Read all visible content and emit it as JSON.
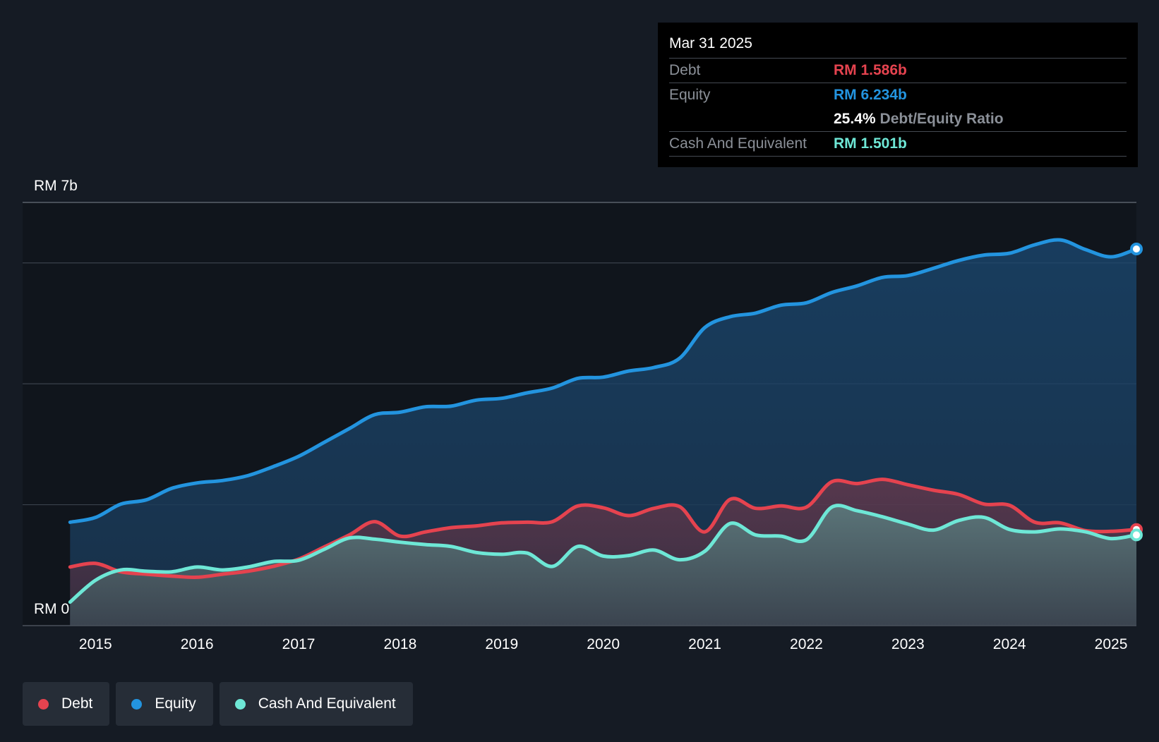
{
  "colors": {
    "background": "#151b24",
    "debt": "#e5434f",
    "equity": "#2394df",
    "cash": "#6ee7d6",
    "grid": "#3a414b"
  },
  "tooltip": {
    "date": "Mar 31 2025",
    "debt_label": "Debt",
    "debt_value": "RM 1.586b",
    "equity_label": "Equity",
    "equity_value": "RM 6.234b",
    "ratio_pct": "25.4%",
    "ratio_label": "Debt/Equity Ratio",
    "cash_label": "Cash And Equivalent",
    "cash_value": "RM 1.501b"
  },
  "legend": [
    {
      "name": "Debt",
      "color": "#e5434f"
    },
    {
      "name": "Equity",
      "color": "#2394df"
    },
    {
      "name": "Cash And Equivalent",
      "color": "#6ee7d6"
    }
  ],
  "chart_data": {
    "type": "area",
    "title": "",
    "xlabel": "",
    "ylabel": "",
    "y_unit": "RM billions",
    "ylim": [
      0,
      7
    ],
    "xlim": [
      2014.72,
      2025.25
    ],
    "y_tick_labels": {
      "top": "RM 7b",
      "bottom": "RM 0"
    },
    "gridlines_y": [
      2,
      4,
      6,
      7
    ],
    "x_ticks": [
      {
        "value": 2015,
        "label": "2015"
      },
      {
        "value": 2016,
        "label": "2016"
      },
      {
        "value": 2017,
        "label": "2017"
      },
      {
        "value": 2018,
        "label": "2018"
      },
      {
        "value": 2019,
        "label": "2019"
      },
      {
        "value": 2020,
        "label": "2020"
      },
      {
        "value": 2021,
        "label": "2021"
      },
      {
        "value": 2022,
        "label": "2022"
      },
      {
        "value": 2023,
        "label": "2023"
      },
      {
        "value": 2024,
        "label": "2024"
      },
      {
        "value": 2025,
        "label": "2025"
      }
    ],
    "x": [
      2014.75,
      2015.0,
      2015.25,
      2015.5,
      2015.75,
      2016.0,
      2016.25,
      2016.5,
      2016.75,
      2017.0,
      2017.25,
      2017.5,
      2017.75,
      2018.0,
      2018.25,
      2018.5,
      2018.75,
      2019.0,
      2019.25,
      2019.5,
      2019.75,
      2020.0,
      2020.25,
      2020.5,
      2020.75,
      2021.0,
      2021.25,
      2021.5,
      2021.75,
      2022.0,
      2022.25,
      2022.5,
      2022.75,
      2023.0,
      2023.25,
      2023.5,
      2023.75,
      2024.0,
      2024.25,
      2024.5,
      2024.75,
      2025.0,
      2025.25
    ],
    "series": [
      {
        "name": "Equity",
        "values": [
          1.71,
          1.79,
          2.01,
          2.08,
          2.27,
          2.36,
          2.4,
          2.48,
          2.63,
          2.8,
          3.03,
          3.26,
          3.49,
          3.53,
          3.62,
          3.63,
          3.73,
          3.76,
          3.85,
          3.93,
          4.09,
          4.11,
          4.21,
          4.27,
          4.42,
          4.93,
          5.11,
          5.17,
          5.3,
          5.34,
          5.51,
          5.62,
          5.76,
          5.79,
          5.91,
          6.04,
          6.13,
          6.16,
          6.3,
          6.38,
          6.22,
          6.1,
          6.23
        ]
      },
      {
        "name": "Debt",
        "values": [
          0.97,
          1.03,
          0.89,
          0.85,
          0.82,
          0.8,
          0.85,
          0.9,
          0.98,
          1.1,
          1.3,
          1.5,
          1.72,
          1.48,
          1.55,
          1.62,
          1.65,
          1.7,
          1.71,
          1.72,
          1.98,
          1.95,
          1.82,
          1.94,
          1.97,
          1.55,
          2.09,
          1.94,
          1.98,
          1.96,
          2.38,
          2.35,
          2.42,
          2.33,
          2.24,
          2.17,
          2.01,
          1.99,
          1.71,
          1.7,
          1.57,
          1.56,
          1.59
        ]
      },
      {
        "name": "Cash And Equivalent",
        "values": [
          0.39,
          0.75,
          0.92,
          0.9,
          0.89,
          0.97,
          0.92,
          0.97,
          1.06,
          1.08,
          1.26,
          1.45,
          1.43,
          1.38,
          1.34,
          1.31,
          1.21,
          1.18,
          1.2,
          0.98,
          1.31,
          1.15,
          1.16,
          1.25,
          1.09,
          1.23,
          1.69,
          1.5,
          1.48,
          1.42,
          1.96,
          1.9,
          1.8,
          1.68,
          1.58,
          1.74,
          1.79,
          1.59,
          1.55,
          1.6,
          1.55,
          1.44,
          1.5
        ]
      }
    ]
  }
}
